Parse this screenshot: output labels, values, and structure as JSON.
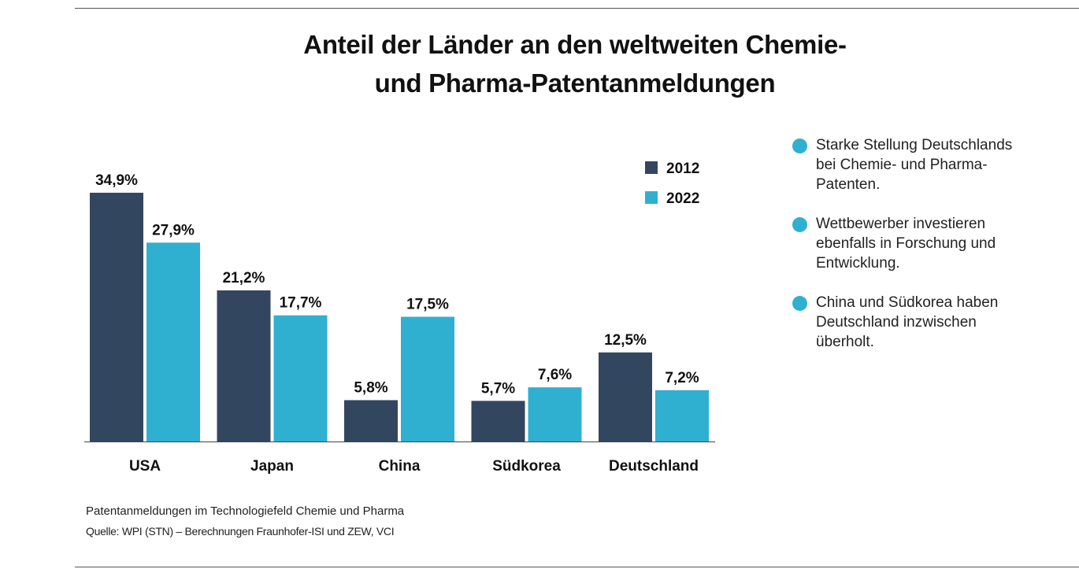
{
  "title": {
    "line1": "Anteil der Länder an den weltweiten Chemie-",
    "line2": "und Pharma-Patentanmeldungen"
  },
  "colors": {
    "series_2012": "#33465f",
    "series_2022": "#2fb0d0",
    "bullet": "#2fb0d0"
  },
  "chart_data": {
    "type": "bar",
    "categories": [
      "USA",
      "Japan",
      "China",
      "Südkorea",
      "Deutschland"
    ],
    "series": [
      {
        "name": "2012",
        "values": [
          34.9,
          21.2,
          5.8,
          5.7,
          12.5
        ],
        "labels": [
          "34,9%",
          "21,2%",
          "5,8%",
          "5,7%",
          "12,5%"
        ]
      },
      {
        "name": "2022",
        "values": [
          27.9,
          17.7,
          17.5,
          7.6,
          7.2
        ],
        "labels": [
          "27,9%",
          "17,7%",
          "17,5%",
          "7,6%",
          "7,2%"
        ]
      }
    ],
    "ylim": [
      0,
      35
    ],
    "grid": false,
    "legend": "top-right",
    "xlabel": "",
    "ylabel": ""
  },
  "notes": [
    {
      "text": "Starke Stellung Deutschlands\nbei Chemie- und Pharma-\nPatenten."
    },
    {
      "text": "Wettbewerber investieren\nebenfalls in Forschung und\nEntwicklung."
    },
    {
      "text": "China und Südkorea haben\nDeutschland inzwischen\nüberholt."
    }
  ],
  "footer": {
    "description": "Patentanmeldungen im Technologiefeld Chemie und Pharma",
    "source": "Quelle: WPI (STN) – Berechnungen Fraunhofer-ISI und ZEW, VCI"
  }
}
